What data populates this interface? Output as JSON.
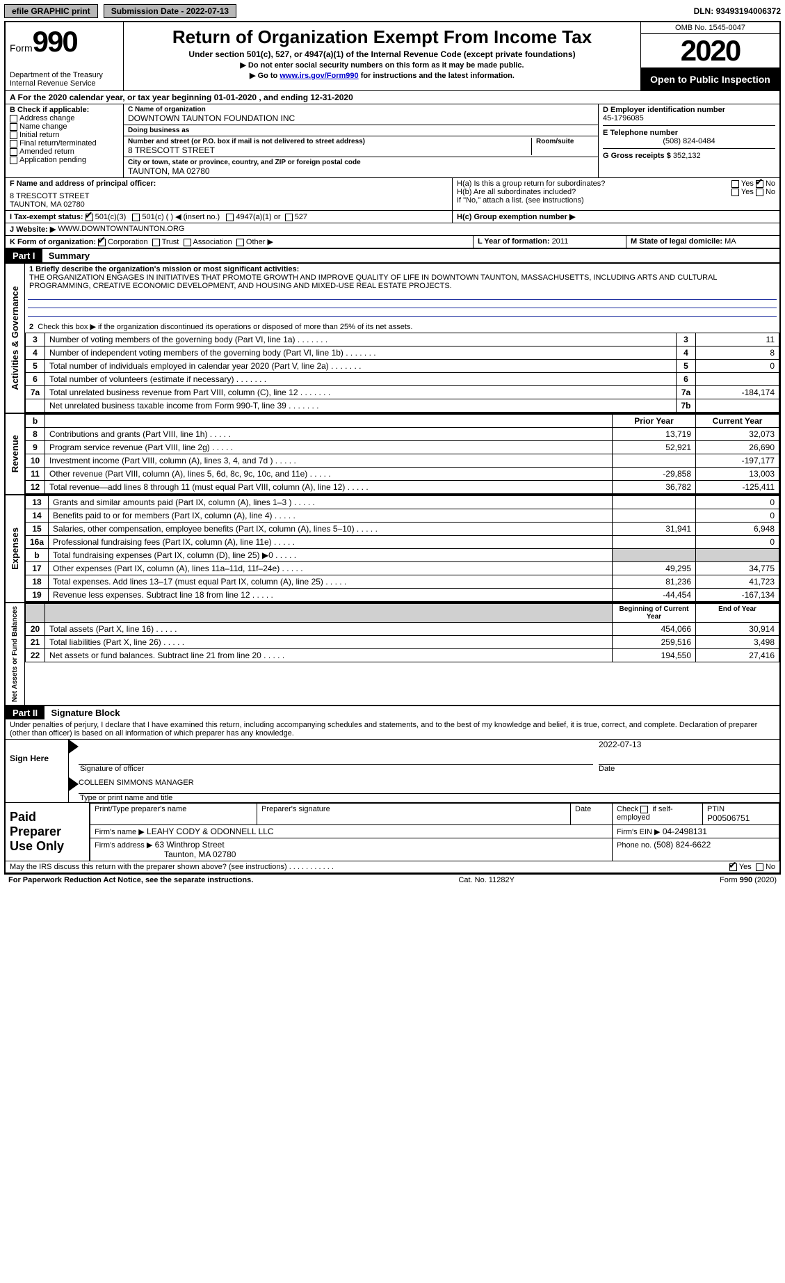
{
  "topbar": {
    "efile": "efile GRAPHIC print",
    "submission_label": "Submission Date - ",
    "submission_date": "2022-07-13",
    "dln_label": "DLN: ",
    "dln": "93493194006372"
  },
  "header": {
    "form_word": "Form",
    "form_number": "990",
    "department": "Department of the Treasury\nInternal Revenue Service",
    "title": "Return of Organization Exempt From Income Tax",
    "subtitle": "Under section 501(c), 527, or 4947(a)(1) of the Internal Revenue Code (except private foundations)",
    "note1": "▶ Do not enter social security numbers on this form as it may be made public.",
    "note2_pre": "▶ Go to ",
    "note2_link": "www.irs.gov/Form990",
    "note2_post": " for instructions and the latest information.",
    "omb": "OMB No. 1545-0047",
    "year": "2020",
    "opentag": "Open to Public Inspection"
  },
  "row_a": "A For the 2020 calendar year, or tax year beginning 01-01-2020    , and ending 12-31-2020",
  "col_b": {
    "header": "B Check if applicable:",
    "items": [
      "Address change",
      "Name change",
      "Initial return",
      "Final return/terminated",
      "Amended return",
      "Application pending"
    ]
  },
  "col_c": {
    "name_label": "C Name of organization",
    "name": "DOWNTOWN TAUNTON FOUNDATION INC",
    "dba_label": "Doing business as",
    "dba": "",
    "street_label": "Number and street (or P.O. box if mail is not delivered to street address)",
    "room_label": "Room/suite",
    "street": "8 TRESCOTT STREET",
    "city_label": "City or town, state or province, country, and ZIP or foreign postal code",
    "city": "TAUNTON, MA  02780"
  },
  "col_d": {
    "d_label": "D Employer identification number",
    "ein": "45-1796085",
    "e_label": "E Telephone number",
    "phone": "(508) 824-0484",
    "g_label": "G Gross receipts $ ",
    "g_val": "352,132"
  },
  "fh": {
    "f_label": "F  Name and address of principal officer:",
    "f_val": "8 TRESCOTT STREET\nTAUNTON, MA  02780",
    "ha": "H(a)  Is this a group return for subordinates?",
    "hb": "H(b)  Are all subordinates included?",
    "hb_note": "If \"No,\" attach a list. (see instructions)",
    "hc": "H(c)  Group exemption number ▶",
    "yes": "Yes",
    "no": "No"
  },
  "i": {
    "label": "I   Tax-exempt status:",
    "o501c3": "501(c)(3)",
    "o501c": "501(c) (   ) ◀ (insert no.)",
    "o4947": "4947(a)(1) or",
    "o527": "527"
  },
  "j": {
    "label": "J   Website: ▶",
    "val": "WWW.DOWNTOWNTAUNTON.ORG"
  },
  "k": {
    "label": "K Form of organization:",
    "corp": "Corporation",
    "trust": "Trust",
    "assoc": "Association",
    "other": "Other ▶"
  },
  "l": {
    "label": "L Year of formation: ",
    "val": "2011"
  },
  "m": {
    "label": "M State of legal domicile: ",
    "val": "MA"
  },
  "part1": {
    "tag": "Part I",
    "title": "Summary"
  },
  "mission_label": "1   Briefly describe the organization's mission or most significant activities:",
  "mission": "THE ORGANIZATION ENGAGES IN INITIATIVES THAT PROMOTE GROWTH AND IMPROVE QUALITY OF LIFE IN DOWNTOWN TAUNTON, MASSACHUSETTS, INCLUDING ARTS AND CULTURAL PROGRAMMING, CREATIVE ECONOMIC DEVELOPMENT, AND HOUSING AND MIXED-USE REAL ESTATE PROJECTS.",
  "gov": {
    "l2": "Check this box ▶      if the organization discontinued its operations or disposed of more than 25% of its net assets.",
    "rows": [
      {
        "n": "3",
        "d": "Number of voting members of the governing body (Part VI, line 1a)",
        "box": "3",
        "v": "11"
      },
      {
        "n": "4",
        "d": "Number of independent voting members of the governing body (Part VI, line 1b)",
        "box": "4",
        "v": "8"
      },
      {
        "n": "5",
        "d": "Total number of individuals employed in calendar year 2020 (Part V, line 2a)",
        "box": "5",
        "v": "0"
      },
      {
        "n": "6",
        "d": "Total number of volunteers (estimate if necessary)",
        "box": "6",
        "v": ""
      },
      {
        "n": "7a",
        "d": "Total unrelated business revenue from Part VIII, column (C), line 12",
        "box": "7a",
        "v": "-184,174"
      },
      {
        "n": "",
        "d": "Net unrelated business taxable income from Form 990-T, line 39",
        "box": "7b",
        "v": ""
      }
    ]
  },
  "rev_hdr": {
    "n": "b",
    "prior": "Prior Year",
    "cur": "Current Year"
  },
  "revenue": [
    {
      "n": "8",
      "d": "Contributions and grants (Part VIII, line 1h)",
      "p": "13,719",
      "c": "32,073"
    },
    {
      "n": "9",
      "d": "Program service revenue (Part VIII, line 2g)",
      "p": "52,921",
      "c": "26,690"
    },
    {
      "n": "10",
      "d": "Investment income (Part VIII, column (A), lines 3, 4, and 7d )",
      "p": "",
      "c": "-197,177"
    },
    {
      "n": "11",
      "d": "Other revenue (Part VIII, column (A), lines 5, 6d, 8c, 9c, 10c, and 11e)",
      "p": "-29,858",
      "c": "13,003"
    },
    {
      "n": "12",
      "d": "Total revenue—add lines 8 through 11 (must equal Part VIII, column (A), line 12)",
      "p": "36,782",
      "c": "-125,411"
    }
  ],
  "expenses": [
    {
      "n": "13",
      "d": "Grants and similar amounts paid (Part IX, column (A), lines 1–3 )",
      "p": "",
      "c": "0"
    },
    {
      "n": "14",
      "d": "Benefits paid to or for members (Part IX, column (A), line 4)",
      "p": "",
      "c": "0"
    },
    {
      "n": "15",
      "d": "Salaries, other compensation, employee benefits (Part IX, column (A), lines 5–10)",
      "p": "31,941",
      "c": "6,948"
    },
    {
      "n": "16a",
      "d": "Professional fundraising fees (Part IX, column (A), line 11e)",
      "p": "",
      "c": "0"
    },
    {
      "n": "b",
      "d": "Total fundraising expenses (Part IX, column (D), line 25) ▶0",
      "p": "shade",
      "c": "shade"
    },
    {
      "n": "17",
      "d": "Other expenses (Part IX, column (A), lines 11a–11d, 11f–24e)",
      "p": "49,295",
      "c": "34,775"
    },
    {
      "n": "18",
      "d": "Total expenses. Add lines 13–17 (must equal Part IX, column (A), line 25)",
      "p": "81,236",
      "c": "41,723"
    },
    {
      "n": "19",
      "d": "Revenue less expenses. Subtract line 18 from line 12",
      "p": "-44,454",
      "c": "-167,134"
    }
  ],
  "net_hdr": {
    "prior": "Beginning of Current Year",
    "cur": "End of Year"
  },
  "net": [
    {
      "n": "20",
      "d": "Total assets (Part X, line 16)",
      "p": "454,066",
      "c": "30,914"
    },
    {
      "n": "21",
      "d": "Total liabilities (Part X, line 26)",
      "p": "259,516",
      "c": "3,498"
    },
    {
      "n": "22",
      "d": "Net assets or fund balances. Subtract line 21 from line 20",
      "p": "194,550",
      "c": "27,416"
    }
  ],
  "part2": {
    "tag": "Part II",
    "title": "Signature Block"
  },
  "penalty": "Under penalties of perjury, I declare that I have examined this return, including accompanying schedules and statements, and to the best of my knowledge and belief, it is true, correct, and complete. Declaration of preparer (other than officer) is based on all information of which preparer has any knowledge.",
  "sign": {
    "here": "Sign Here",
    "sig_label": "Signature of officer",
    "date_label": "Date",
    "date": "2022-07-13",
    "name": "COLLEEN SIMMONS  MANAGER",
    "name_label": "Type or print name and title"
  },
  "paid": {
    "title": "Paid Preparer Use Only",
    "h_name": "Print/Type preparer's name",
    "h_sig": "Preparer's signature",
    "h_date": "Date",
    "h_check": "Check        if self-employed",
    "h_ptin": "PTIN",
    "ptin": "P00506751",
    "firm_label": "Firm's name    ▶",
    "firm": "LEAHY CODY & ODONNELL LLC",
    "ein_label": "Firm's EIN ▶",
    "ein": "04-2498131",
    "addr_label": "Firm's address ▶",
    "addr1": "63 Winthrop Street",
    "addr2": "Taunton, MA  02780",
    "phone_label": "Phone no. ",
    "phone": "(508) 824-6622"
  },
  "discuss": "May the IRS discuss this return with the preparer shown above? (see instructions)",
  "footer": {
    "left": "For Paperwork Reduction Act Notice, see the separate instructions.",
    "mid": "Cat. No. 11282Y",
    "right": "Form 990 (2020)"
  },
  "side_labels": {
    "gov": "Activities & Governance",
    "rev": "Revenue",
    "exp": "Expenses",
    "net": "Net Assets or Fund Balances"
  }
}
